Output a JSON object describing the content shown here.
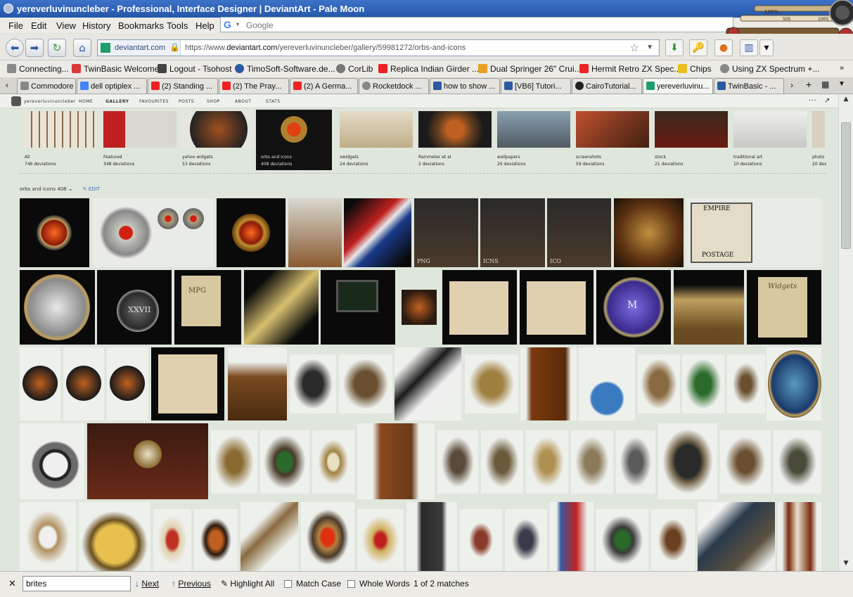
{
  "window": {
    "title": "yereverluvinuncleber - Professional, Interface Designer | DeviantArt - Pale Moon",
    "steam_gauge_values": [
      "100%",
      "505",
      "1005"
    ]
  },
  "menu": [
    "File",
    "Edit",
    "View",
    "History",
    "Bookmarks",
    "Tools",
    "Help"
  ],
  "search": {
    "placeholder": "Google",
    "engine_icon": "G"
  },
  "urlbar": {
    "identity": "deviantart.com",
    "url_prefix": "https://www.",
    "url_domain": "deviantart.com",
    "url_path": "/yereverluvinuncleber/gallery/59981272/orbs-and-icons"
  },
  "bookmarks": [
    {
      "label": "Connecting...",
      "color": "#8a8a8a"
    },
    {
      "label": "TwinBasic Welcome",
      "color": "#d93a3a"
    },
    {
      "label": "Logout - Tsohost",
      "color": "#444444"
    },
    {
      "label": "TimoSoft-Software.de...",
      "color": "#2c5aa0"
    },
    {
      "label": "CorLib",
      "color": "#777777"
    },
    {
      "label": "Replica Indian Girder ...",
      "color": "#e22222"
    },
    {
      "label": "Dual Springer 26\" Crui...",
      "color": "#e9a020"
    },
    {
      "label": "Hermit Retro ZX Spec...",
      "color": "#e22222"
    },
    {
      "label": "Chips",
      "color": "#e8c020"
    },
    {
      "label": "Using ZX Spectrum +...",
      "color": "#888888"
    }
  ],
  "tabs": [
    {
      "label": "Commodore ...",
      "color": "#888"
    },
    {
      "label": "dell optiplex ...",
      "color": "#4285f4"
    },
    {
      "label": "(2) Standing ...",
      "color": "#e22222"
    },
    {
      "label": "(2) The Pray...",
      "color": "#e22222"
    },
    {
      "label": "(2) A Germa...",
      "color": "#e22222"
    },
    {
      "label": "Rocketdock ...",
      "color": "#888"
    },
    {
      "label": "how to show ...",
      "color": "#2c5aa0"
    },
    {
      "label": "[VB6] Tutori...",
      "color": "#2c5aa0"
    },
    {
      "label": "CairoTutorial...",
      "color": "#222"
    },
    {
      "label": "yereverluvinu...",
      "color": "#1c9e6a"
    },
    {
      "label": "TwinBasic - ...",
      "color": "#2c5aa0"
    }
  ],
  "da_nav": {
    "user": "yereverluvinuncleber",
    "items": [
      "HOME",
      "GALLERY",
      "FAVOURITES",
      "POSTS",
      "SHOP",
      "ABOUT",
      "STATS"
    ]
  },
  "folders": [
    {
      "name": "All",
      "count": "746 deviations",
      "selected": false
    },
    {
      "name": "Featured",
      "count": "348 deviations",
      "selected": false
    },
    {
      "name": "yahoo widgets",
      "count": "53 deviations",
      "selected": false
    },
    {
      "name": "orbs and icons",
      "count": "408 deviations",
      "selected": true
    },
    {
      "name": "xwidgets",
      "count": "24 deviations",
      "selected": false
    },
    {
      "name": "Rainmeter et al",
      "count": "2 deviations",
      "selected": false
    },
    {
      "name": "wallpapers",
      "count": "26 deviations",
      "selected": false
    },
    {
      "name": "screenshots",
      "count": "59 deviations",
      "selected": false
    },
    {
      "name": "stock",
      "count": "21 deviations",
      "selected": false
    },
    {
      "name": "traditional art",
      "count": "10 deviations",
      "selected": false
    },
    {
      "name": "photo",
      "count": "20 dev",
      "selected": false
    }
  ],
  "gallery": {
    "title": "orbs and icons",
    "count": "408",
    "edit": "EDIT"
  },
  "thumb_labels": [
    "PNG",
    "ICNS",
    "ICO",
    "XXVII",
    "MPG",
    "M",
    "Widgets",
    "POSTAGE",
    "EMPIRE"
  ],
  "findbar": {
    "value": "brites",
    "next": "Next",
    "previous": "Previous",
    "highlight": "Highlight All",
    "match_case": "Match Case",
    "whole_words": "Whole Words",
    "status": "1 of 2 matches"
  }
}
